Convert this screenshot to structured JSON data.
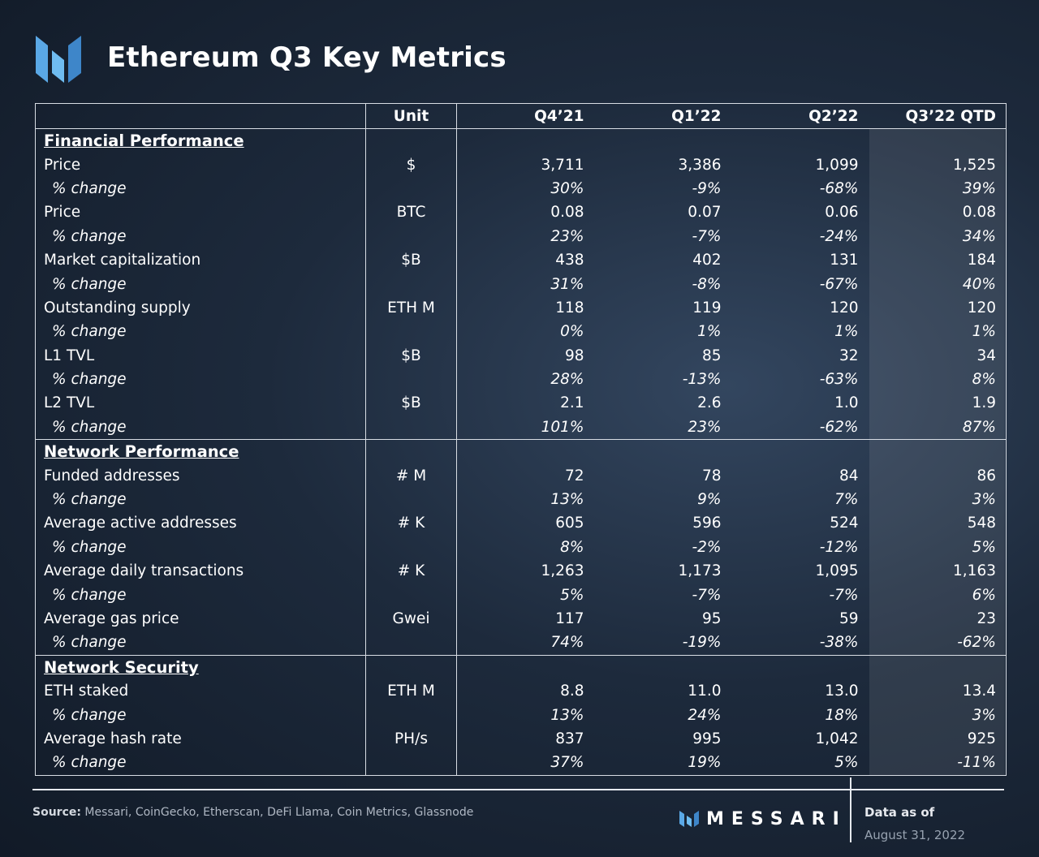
{
  "header": {
    "title": "Ethereum Q3 Key Metrics",
    "logo_icon": "messari-logo-icon"
  },
  "table": {
    "columns": {
      "label": "",
      "unit": "Unit",
      "q4_21": "Q4’21",
      "q1_22": "Q1’22",
      "q2_22": "Q2’22",
      "q3_22": "Q3’22 QTD"
    },
    "sections": {
      "financial": {
        "title": "Financial Performance",
        "price_usd": {
          "label": "Price",
          "unit": "$",
          "values": [
            "3,711",
            "3,386",
            "1,099",
            "1,525"
          ],
          "change": [
            "30%",
            "-9%",
            "-68%",
            "39%"
          ]
        },
        "price_btc": {
          "label": "Price",
          "unit": "BTC",
          "values": [
            "0.08",
            "0.07",
            "0.06",
            "0.08"
          ],
          "change": [
            "23%",
            "-7%",
            "-24%",
            "34%"
          ]
        },
        "market_cap": {
          "label": "Market capitalization",
          "unit": "$B",
          "values": [
            "438",
            "402",
            "131",
            "184"
          ],
          "change": [
            "31%",
            "-8%",
            "-67%",
            "40%"
          ]
        },
        "supply": {
          "label": "Outstanding supply",
          "unit": "ETH M",
          "values": [
            "118",
            "119",
            "120",
            "120"
          ],
          "change": [
            "0%",
            "1%",
            "1%",
            "1%"
          ]
        },
        "l1_tvl": {
          "label": "L1 TVL",
          "unit": "$B",
          "values": [
            "98",
            "85",
            "32",
            "34"
          ],
          "change": [
            "28%",
            "-13%",
            "-63%",
            "8%"
          ]
        },
        "l2_tvl": {
          "label": "L2 TVL",
          "unit": "$B",
          "values": [
            "2.1",
            "2.6",
            "1.0",
            "1.9"
          ],
          "change": [
            "101%",
            "23%",
            "-62%",
            "87%"
          ]
        }
      },
      "network": {
        "title": "Network Performance",
        "funded": {
          "label": "Funded addresses",
          "unit": "# M",
          "values": [
            "72",
            "78",
            "84",
            "86"
          ],
          "change": [
            "13%",
            "9%",
            "7%",
            "3%"
          ]
        },
        "active": {
          "label": "Average active addresses",
          "unit": "# K",
          "values": [
            "605",
            "596",
            "524",
            "548"
          ],
          "change": [
            "8%",
            "-2%",
            "-12%",
            "5%"
          ]
        },
        "tx": {
          "label": "Average daily transactions",
          "unit": "# K",
          "values": [
            "1,263",
            "1,173",
            "1,095",
            "1,163"
          ],
          "change": [
            "5%",
            "-7%",
            "-7%",
            "6%"
          ]
        },
        "gas": {
          "label": "Average gas price",
          "unit": "Gwei",
          "values": [
            "117",
            "95",
            "59",
            "23"
          ],
          "change": [
            "74%",
            "-19%",
            "-38%",
            "-62%"
          ]
        }
      },
      "security": {
        "title": "Network Security",
        "staked": {
          "label": "ETH staked",
          "unit": "ETH M",
          "values": [
            "8.8",
            "11.0",
            "13.0",
            "13.4"
          ],
          "change": [
            "13%",
            "24%",
            "18%",
            "3%"
          ]
        },
        "hash": {
          "label": "Average hash rate",
          "unit": "PH/s",
          "values": [
            "837",
            "995",
            "1,042",
            "925"
          ],
          "change": [
            "37%",
            "19%",
            "5%",
            "-11%"
          ]
        }
      }
    },
    "change_label": "% change"
  },
  "footer": {
    "source_label": "Source:",
    "source_text": " Messari, CoinGecko, Etherscan, DeFi Llama, Coin Metrics, Glassnode",
    "brand": "MESSARI",
    "brand_icon": "messari-mark-icon",
    "data_as_of_label": "Data as of",
    "data_as_of_date": "August 31, 2022"
  }
}
